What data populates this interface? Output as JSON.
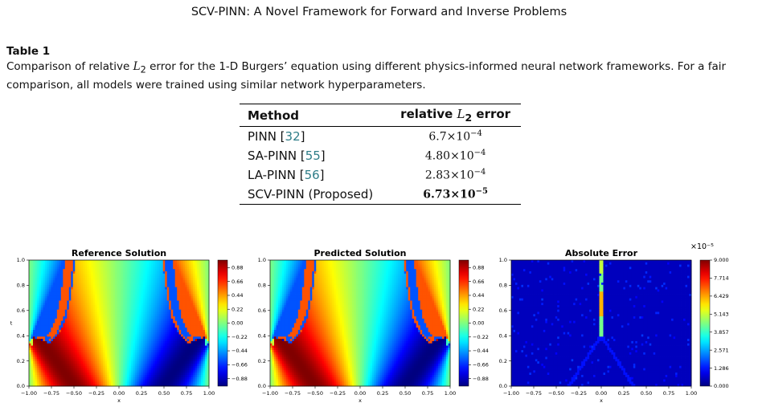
{
  "header": "SCV-PINN: A Novel Framework for Forward and Inverse Problems",
  "table": {
    "label": "Table 1",
    "caption_pre": "Comparison of relative ",
    "caption_L": "L",
    "caption_sub": "2",
    "caption_post": " error for the 1-D Burgers’ equation using different physics-informed neural network frameworks. For a fair comparison, all models were trained using similar network hyperparameters.",
    "col_method": "Method",
    "col_error_pre": "relative ",
    "col_error_L": "L",
    "col_error_sub": "2",
    "col_error_post": " error",
    "rows": [
      {
        "name": "PINN [",
        "ref": "32",
        "close": "]",
        "mant": "6.7",
        "exp": "−4",
        "best": false
      },
      {
        "name": "SA-PINN [",
        "ref": "55",
        "close": "]",
        "mant": "4.80",
        "exp": "−4",
        "best": false
      },
      {
        "name": "LA-PINN [",
        "ref": "56",
        "close": "]",
        "mant": "2.83",
        "exp": "−4",
        "best": false
      },
      {
        "name": "SCV-PINN (Proposed)",
        "ref": "",
        "close": "",
        "mant": "6.73",
        "exp": "−5",
        "best": true
      }
    ],
    "times": "×",
    "ten": "10"
  },
  "panels": [
    {
      "title": "Reference Solution",
      "kind": "solution",
      "xlabel": "x",
      "ylabel": "t",
      "xticks": [
        "−1.00",
        "−0.75",
        "−0.50",
        "−0.25",
        "0.00",
        "0.25",
        "0.50",
        "0.75",
        "1.00"
      ],
      "yticks": [
        "0.0",
        "0.2",
        "0.4",
        "0.6",
        "0.8",
        "1.0"
      ],
      "cbar_ticks": [
        "0.88",
        "0.66",
        "0.44",
        "0.22",
        "0.00",
        "−0.22",
        "−0.44",
        "−0.66",
        "−0.88"
      ],
      "cbar_range": [
        -1,
        1
      ],
      "cbar_multiplier": ""
    },
    {
      "title": "Predicted Solution",
      "kind": "solution",
      "xlabel": "x",
      "ylabel": "",
      "xticks": [
        "−1.00",
        "−0.75",
        "−0.50",
        "−0.25",
        "0.00",
        "0.25",
        "0.50",
        "0.75",
        "1.00"
      ],
      "yticks": [
        "0.0",
        "0.2",
        "0.4",
        "0.6",
        "0.8",
        "1.0"
      ],
      "cbar_ticks": [
        "0.88",
        "0.66",
        "0.44",
        "0.22",
        "0.00",
        "−0.22",
        "−0.44",
        "−0.66",
        "−0.88"
      ],
      "cbar_range": [
        -1,
        1
      ],
      "cbar_multiplier": ""
    },
    {
      "title": "Absolute Error",
      "kind": "error",
      "xlabel": "x",
      "ylabel": "",
      "xticks": [
        "−1.00",
        "−0.75",
        "−0.50",
        "−0.25",
        "0.00",
        "0.25",
        "0.50",
        "0.75",
        "1.00"
      ],
      "yticks": [
        "0.0",
        "0.2",
        "0.4",
        "0.6",
        "0.8",
        "1.0"
      ],
      "cbar_ticks": [
        "9.000",
        "7.714",
        "6.429",
        "5.143",
        "3.857",
        "2.571",
        "1.286",
        "0.000"
      ],
      "cbar_range": [
        0,
        9
      ],
      "cbar_multiplier": "×10⁻⁵"
    }
  ],
  "colormap": "jet"
}
